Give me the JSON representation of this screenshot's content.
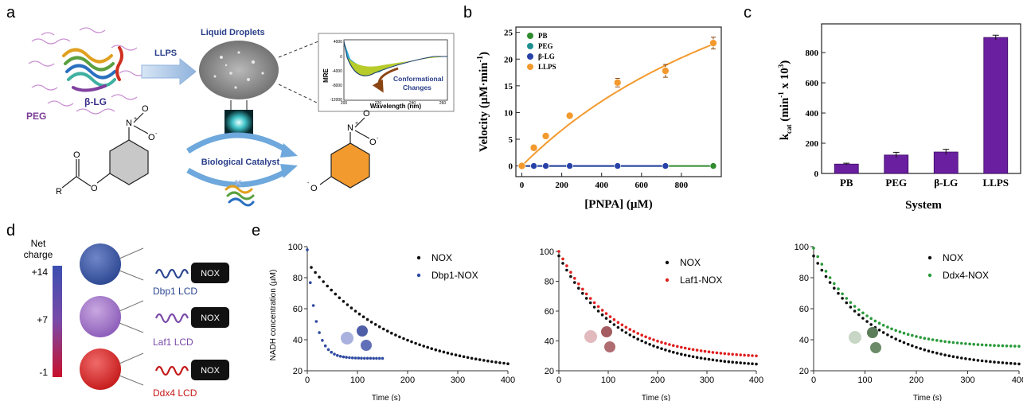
{
  "panels": {
    "a": {
      "letter": "a",
      "peg_label": "PEG",
      "blg_label": "β-LG",
      "llps_label": "LLPS",
      "droplets_label": "Liquid Droplets",
      "catalyst_label": "Biological Catalyst",
      "conformational_label_1": "Conformational",
      "conformational_label_2": "Changes",
      "r_label": "R",
      "o_label": "O",
      "no2_n": "N",
      "no2_plus": "+",
      "no2_o_minus": "O",
      "minus": "-",
      "cd_chart": {
        "ylabel": "MRE",
        "xlabel": "Wavelength (nm)",
        "xticks": [
          "200",
          "220",
          "240",
          "260"
        ],
        "yticks": [
          "4000",
          "0",
          "-4000",
          "-8000",
          "-12000"
        ]
      }
    },
    "b": {
      "letter": "b",
      "xlabel": "[PNPA] (µM)",
      "ylabel_main": "Velocity (µM·min",
      "ylabel_sup": "-1",
      "ylabel_end": ")",
      "legend": [
        "PB",
        "PEG",
        "β-LG",
        "LLPS"
      ]
    },
    "c": {
      "letter": "c",
      "xlabel": "System",
      "ylabel_k": "k",
      "ylabel_sub": "cat",
      "ylabel_main": " (min",
      "ylabel_sup": "-1",
      "ylabel_end": " x 10",
      "ylabel_sup2": "3",
      "ylabel_close": ")"
    },
    "d": {
      "letter": "d",
      "net_charge_1": "Net",
      "net_charge_2": "charge",
      "scale": [
        "+14",
        "+7",
        "-1"
      ],
      "constructs": [
        "Dbp1 LCD",
        "Laf1 LCD",
        "Ddx4 LCD"
      ],
      "nox_label": "NOX"
    },
    "e": {
      "letter": "e",
      "ylabel": "NADH concentration (µM)",
      "xlabel": "Time (s)"
    }
  },
  "chart_data": [
    {
      "id": "b",
      "type": "scatter",
      "xlabel": "[PNPA] (µM)",
      "ylabel": "Velocity (µM·min-1)",
      "xlim": [
        -30,
        1000
      ],
      "ylim": [
        -2,
        26
      ],
      "xticks": [
        0,
        200,
        400,
        600,
        800
      ],
      "yticks": [
        0,
        5,
        10,
        15,
        20,
        25
      ],
      "legend_position": "top-left",
      "series": [
        {
          "name": "PB",
          "color": "#2e8b2e",
          "x": [
            0,
            60,
            120,
            240,
            480,
            720,
            960
          ],
          "y": [
            0,
            0,
            0,
            0,
            0,
            0,
            0
          ]
        },
        {
          "name": "PEG",
          "color": "#1f8f8f",
          "x": [
            0,
            60,
            120,
            240,
            480,
            720
          ],
          "y": [
            0,
            0,
            0,
            0,
            0,
            0
          ]
        },
        {
          "name": "β-LG",
          "color": "#2741a8",
          "x": [
            0,
            60,
            120,
            240,
            480,
            720
          ],
          "y": [
            0,
            0,
            0,
            0,
            0,
            0
          ]
        },
        {
          "name": "LLPS",
          "color": "#f39a2e",
          "x": [
            0,
            60,
            120,
            240,
            480,
            720,
            960
          ],
          "y": [
            0,
            3.4,
            5.6,
            9.4,
            15.6,
            17.8,
            23.0
          ],
          "err": [
            0.3,
            0.5,
            0.4,
            0.4,
            0.8,
            1.2,
            1.1
          ]
        }
      ]
    },
    {
      "id": "c",
      "type": "bar",
      "xlabel": "System",
      "ylabel": "kcat (min-1 x 10^3)",
      "categories": [
        "PB",
        "PEG",
        "β-LG",
        "LLPS"
      ],
      "values": [
        62,
        122,
        142,
        900
      ],
      "errors": [
        6,
        18,
        18,
        15
      ],
      "ylim": [
        0,
        990
      ],
      "yticks": [
        0,
        200,
        400,
        600,
        800
      ]
    },
    {
      "id": "e1",
      "type": "scatter",
      "xlabel": "Time (s)",
      "ylabel": "NADH concentration (µM)",
      "xlim": [
        0,
        400
      ],
      "ylim": [
        20,
        100
      ],
      "xticks": [
        0,
        100,
        200,
        300,
        400
      ],
      "yticks": [
        20,
        40,
        60,
        80,
        100
      ],
      "legend_position": "top-right",
      "series": [
        {
          "name": "NOX",
          "color": "#111111",
          "model": {
            "a": 72,
            "k": 0.006,
            "c": 18,
            "t0": 8,
            "t1": 400,
            "step": 8
          }
        },
        {
          "name": "Dbp1-NOX",
          "color": "#2f4aa0",
          "model": {
            "a": 70,
            "k": 0.06,
            "c": 28,
            "t0": 0,
            "t1": 150,
            "step": 6
          }
        }
      ]
    },
    {
      "id": "e2",
      "type": "scatter",
      "xlabel": "Time (s)",
      "xlim": [
        0,
        400
      ],
      "ylim": [
        20,
        100
      ],
      "xticks": [
        0,
        100,
        200,
        300,
        400
      ],
      "yticks": [
        20,
        40,
        60,
        80,
        100
      ],
      "legend_position": "top-right",
      "series": [
        {
          "name": "NOX",
          "color": "#111111",
          "model": {
            "a": 75,
            "k": 0.0085,
            "c": 22,
            "t0": 0,
            "t1": 400,
            "step": 8
          }
        },
        {
          "name": "Laf1-NOX",
          "color": "#e02020",
          "model": {
            "a": 72,
            "k": 0.009,
            "c": 28,
            "t0": 0,
            "t1": 400,
            "step": 8
          }
        }
      ]
    },
    {
      "id": "e3",
      "type": "scatter",
      "xlabel": "Time (s)",
      "xlim": [
        0,
        400
      ],
      "ylim": [
        20,
        100
      ],
      "xticks": [
        0,
        100,
        200,
        300,
        400
      ],
      "yticks": [
        20,
        40,
        60,
        80,
        100
      ],
      "legend_position": "top-right",
      "series": [
        {
          "name": "NOX",
          "color": "#111111",
          "model": {
            "a": 72,
            "k": 0.0085,
            "c": 22,
            "t0": 0,
            "t1": 400,
            "step": 8
          }
        },
        {
          "name": "Ddx4-NOX",
          "color": "#2a9a3a",
          "model": {
            "a": 64,
            "k": 0.011,
            "c": 35,
            "t0": 0,
            "t1": 400,
            "step": 8
          }
        }
      ]
    }
  ]
}
